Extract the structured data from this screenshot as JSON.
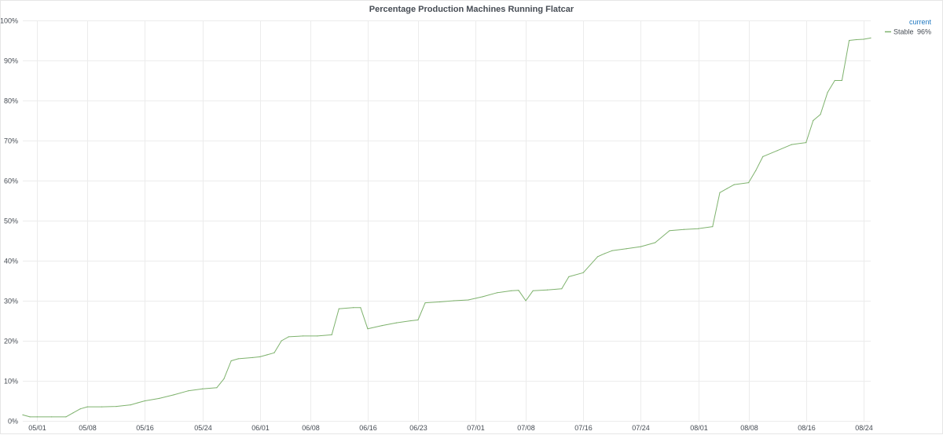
{
  "panel": {
    "title": "Percentage Production Machines Running Flatcar"
  },
  "colors": {
    "series": "#7eb26d",
    "grid": "#ececec",
    "legend_header": "#1f78c1",
    "text": "#464c54"
  },
  "legend": {
    "header": "current",
    "items": [
      {
        "name": "Stable",
        "current": "96%"
      }
    ]
  },
  "chart_data": {
    "type": "line",
    "title": "Percentage Production Machines Running Flatcar",
    "xlabel": "",
    "ylabel": "",
    "x_ticks": [
      "05/01",
      "05/08",
      "05/16",
      "05/24",
      "06/01",
      "06/08",
      "06/16",
      "06/23",
      "07/01",
      "07/08",
      "07/16",
      "07/24",
      "08/01",
      "08/08",
      "08/16",
      "08/24"
    ],
    "y_ticks": [
      "0%",
      "10%",
      "20%",
      "30%",
      "40%",
      "50%",
      "60%",
      "70%",
      "80%",
      "90%",
      "100%"
    ],
    "ylim": [
      0,
      100
    ],
    "xlim": [
      "04/29",
      "08/25"
    ],
    "grid": true,
    "legend_position": "top-right",
    "series": [
      {
        "name": "Stable",
        "color": "#7eb26d",
        "current": "96%",
        "x": [
          "04/29",
          "04/30",
          "05/01",
          "05/03",
          "05/05",
          "05/06",
          "05/07",
          "05/08",
          "05/10",
          "05/12",
          "05/14",
          "05/15",
          "05/16",
          "05/18",
          "05/20",
          "05/22",
          "05/24",
          "05/26",
          "05/27",
          "05/28",
          "05/29",
          "05/31",
          "06/01",
          "06/02",
          "06/03",
          "06/04",
          "06/05",
          "06/07",
          "06/09",
          "06/11",
          "06/12",
          "06/14",
          "06/15",
          "06/16",
          "06/18",
          "06/20",
          "06/22",
          "06/23",
          "06/24",
          "06/26",
          "06/28",
          "06/30",
          "07/02",
          "07/04",
          "07/06",
          "07/07",
          "07/08",
          "07/09",
          "07/11",
          "07/13",
          "07/14",
          "07/16",
          "07/18",
          "07/19",
          "07/20",
          "07/22",
          "07/24",
          "07/26",
          "07/28",
          "07/30",
          "08/01",
          "08/03",
          "08/04",
          "08/05",
          "08/06",
          "08/08",
          "08/09",
          "08/10",
          "08/12",
          "08/14",
          "08/16",
          "08/17",
          "08/18",
          "08/19",
          "08/20",
          "08/21",
          "08/22",
          "08/23",
          "08/24",
          "08/25"
        ],
        "y": [
          1.5,
          1.0,
          1.0,
          1.0,
          1.0,
          2.0,
          3.0,
          3.5,
          3.5,
          3.6,
          4.0,
          4.5,
          5.0,
          5.6,
          6.5,
          7.5,
          8.0,
          8.3,
          10.5,
          15.0,
          15.5,
          15.8,
          16.0,
          16.5,
          17.0,
          20.0,
          21.0,
          21.2,
          21.2,
          21.5,
          28.0,
          28.3,
          28.3,
          23.0,
          23.8,
          24.5,
          25.0,
          25.2,
          29.5,
          29.7,
          30.0,
          30.2,
          31.0,
          32.0,
          32.5,
          32.6,
          30.0,
          32.5,
          32.7,
          33.0,
          36.0,
          37.0,
          41.0,
          41.8,
          42.5,
          43.0,
          43.5,
          44.5,
          47.5,
          47.8,
          48.0,
          48.5,
          57.0,
          58.0,
          59.0,
          59.5,
          62.5,
          66.0,
          67.5,
          69.0,
          69.5,
          75.0,
          76.5,
          82.0,
          85.0,
          85.0,
          95.0,
          95.2,
          95.3,
          95.6
        ]
      }
    ]
  }
}
